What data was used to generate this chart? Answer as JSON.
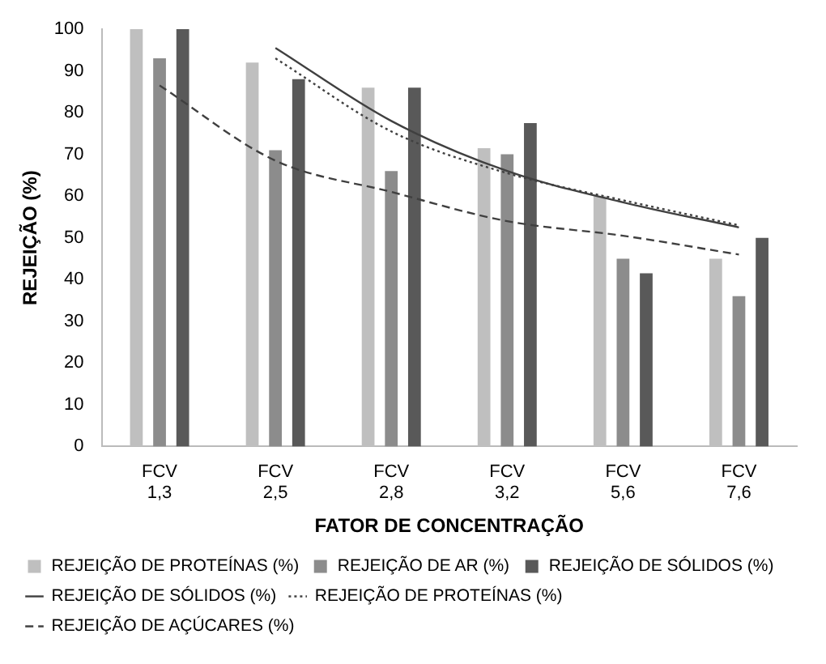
{
  "chart_data": {
    "type": "bar",
    "xlabel": "FATOR DE CONCENTRAÇÃO",
    "ylabel": "REJEIÇÃO (%)",
    "categories": [
      "FCV 1,3",
      "FCV 2,5",
      "FCV 2,8",
      "FCV 3,2",
      "FCV 5,6",
      "FCV 7,6"
    ],
    "series": [
      {
        "name": "REJEIÇÃO DE PROTEÍNAS (%)",
        "color": "#bfbfbf",
        "values": [
          100,
          92,
          86,
          71.5,
          60,
          45
        ]
      },
      {
        "name": "REJEIÇÃO DE AR (%)",
        "color": "#8c8c8c",
        "values": [
          93,
          71,
          66,
          70,
          45,
          36
        ]
      },
      {
        "name": "REJEIÇÃO DE SÓLIDOS (%)",
        "color": "#595959",
        "values": [
          100,
          88,
          86,
          77.5,
          41.5,
          50
        ]
      },
      {
        "name": "REJEIÇÃO DE SÓLIDOS (%)",
        "type": "line",
        "line_style": "solid",
        "marker": "none",
        "color": "#404040",
        "values": [
          null,
          95.5,
          78,
          66,
          58.5,
          52.5
        ]
      },
      {
        "name": "REJEIÇÃO DE PROTEÍNAS (%)",
        "type": "line",
        "line_style": "dotted",
        "marker": "none",
        "color": "#404040",
        "values": [
          null,
          93,
          75.5,
          65.5,
          59,
          53
        ]
      },
      {
        "name": "REJEIÇÃO DE AÇÚCARES (%)",
        "type": "line",
        "line_style": "dashed",
        "marker": "none",
        "color": "#404040",
        "values": [
          86.5,
          68.5,
          61,
          54,
          50.5,
          46
        ]
      }
    ],
    "ylim": [
      0,
      100
    ],
    "yticks": [
      0,
      10,
      20,
      30,
      40,
      50,
      60,
      70,
      80,
      90,
      100
    ],
    "grid": false,
    "legend": "bottom"
  }
}
